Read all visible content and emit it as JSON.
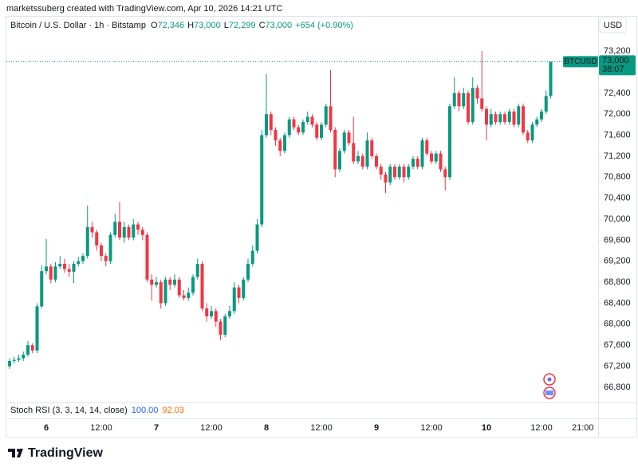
{
  "attribution": "marketssuberg created with TradingView.com, Apr 10, 2026 14:21 UTC",
  "logo": "TradingView",
  "chart_data": {
    "type": "candlestick",
    "title": "Bitcoin / U.S. Dollar · 1h · Bitstamp",
    "ohlc_legend": [
      {
        "key": "O",
        "value": "72,346"
      },
      {
        "key": "H",
        "value": "73,000"
      },
      {
        "key": "L",
        "value": "72,299"
      },
      {
        "key": "C",
        "value": "73,000"
      }
    ],
    "change": "+654 (+0.90%)",
    "currency": "USD",
    "up_color": "#089981",
    "down_color": "#f23645",
    "price_badge": {
      "symbol": "BTCUSD",
      "price": "73,000",
      "countdown": "38:07"
    },
    "indicator": {
      "name": "Stoch RSI (3, 3, 14, 14, close)",
      "k": "100.00",
      "k_color": "#2962ff",
      "d": "92.03",
      "d_color": "#ff6d00"
    },
    "categories": [
      null,
      null,
      null,
      null,
      null,
      null,
      null,
      null,
      "6",
      null,
      null,
      null,
      null,
      null,
      null,
      null,
      null,
      null,
      null,
      null,
      "12:00",
      null,
      null,
      null,
      null,
      null,
      null,
      null,
      null,
      null,
      null,
      null,
      "7",
      null,
      null,
      null,
      null,
      null,
      null,
      null,
      null,
      null,
      null,
      null,
      "12:00",
      null,
      null,
      null,
      null,
      null,
      null,
      null,
      null,
      null,
      null,
      null,
      "8",
      null,
      null,
      null,
      null,
      null,
      null,
      null,
      null,
      null,
      null,
      null,
      "12:00",
      null,
      null,
      null,
      null,
      null,
      null,
      null,
      null,
      null,
      null,
      null,
      "9",
      null,
      null,
      null,
      null,
      null,
      null,
      null,
      null,
      null,
      null,
      null,
      "12:00",
      null,
      null,
      null,
      null,
      null,
      null,
      null,
      null,
      null,
      null,
      null,
      "10",
      null,
      null,
      null,
      null,
      null,
      null,
      null,
      null,
      null,
      null,
      null,
      "12:00",
      null,
      null,
      null,
      null,
      null,
      null,
      null,
      null,
      "21:00"
    ],
    "open": [
      67200,
      67300,
      67320,
      67350,
      67420,
      67600,
      67500,
      68340,
      69010,
      69100,
      68850,
      69100,
      69150,
      69050,
      69000,
      69150,
      69200,
      69300,
      69850,
      69750,
      69500,
      69300,
      69200,
      69700,
      69950,
      69650,
      69850,
      69650,
      69900,
      69800,
      69700,
      68850,
      68750,
      68800,
      68400,
      68850,
      68750,
      68850,
      68550,
      68500,
      68600,
      68900,
      69150,
      68300,
      68150,
      68250,
      68050,
      67800,
      68150,
      68250,
      68700,
      68500,
      68850,
      69150,
      69400,
      69900,
      71600,
      72000,
      71700,
      71500,
      71300,
      71600,
      71900,
      71750,
      71650,
      71850,
      71950,
      71800,
      71550,
      71800,
      72150,
      71700,
      70950,
      71300,
      71650,
      71450,
      71100,
      71200,
      71000,
      71500,
      71200,
      71000,
      70850,
      70700,
      71000,
      70800,
      71000,
      70800,
      71000,
      71150,
      71000,
      71500,
      71250,
      71100,
      71250,
      70950,
      70800,
      72150,
      72400,
      72150,
      72400,
      71850,
      72500,
      72300,
      72100,
      71800,
      72000,
      71850,
      72000,
      71850,
      72050,
      71800,
      72150,
      71650,
      71500,
      71800,
      71900,
      72050,
      72346,
      null,
      null,
      null,
      null,
      null,
      null,
      null
    ],
    "high": [
      67350,
      67380,
      67420,
      67480,
      67680,
      67640,
      68400,
      69120,
      69620,
      69150,
      69180,
      69300,
      69250,
      69150,
      69200,
      69280,
      69350,
      70260,
      69950,
      69800,
      69550,
      69350,
      69750,
      70100,
      70330,
      69950,
      69900,
      70000,
      69950,
      69850,
      69750,
      68950,
      68900,
      68850,
      68900,
      68900,
      68950,
      68900,
      68650,
      68700,
      68950,
      69250,
      69200,
      68400,
      68350,
      68300,
      68100,
      68200,
      68350,
      68800,
      68750,
      68900,
      69250,
      69500,
      70000,
      71700,
      72760,
      72050,
      71750,
      71550,
      71650,
      71950,
      71950,
      71800,
      71900,
      72050,
      72000,
      71850,
      71850,
      72200,
      72840,
      71750,
      71350,
      71700,
      71700,
      71950,
      71300,
      71250,
      71650,
      71550,
      71250,
      71050,
      70900,
      71050,
      71050,
      71050,
      71050,
      71050,
      71200,
      71200,
      71550,
      71550,
      71300,
      71300,
      71300,
      71000,
      72200,
      72700,
      72450,
      72500,
      72450,
      72700,
      72550,
      73200,
      72150,
      72100,
      72050,
      72050,
      72050,
      72100,
      72100,
      72200,
      72200,
      71700,
      71850,
      71950,
      72100,
      72450,
      73000,
      null,
      null,
      null,
      null,
      null,
      null,
      null
    ],
    "low": [
      67150,
      67250,
      67280,
      67300,
      67380,
      67450,
      67450,
      68300,
      68950,
      68780,
      68800,
      69050,
      68980,
      68900,
      68780,
      69100,
      69150,
      69250,
      69650,
      69400,
      69200,
      69100,
      69150,
      69650,
      69600,
      69550,
      69600,
      69600,
      69700,
      69600,
      68800,
      68450,
      68700,
      68300,
      68350,
      68650,
      68700,
      68500,
      68450,
      68450,
      68550,
      68850,
      68250,
      68050,
      68100,
      67950,
      67700,
      67750,
      68100,
      68200,
      68400,
      68450,
      68800,
      69100,
      69350,
      69850,
      71550,
      71600,
      71400,
      71200,
      71250,
      71550,
      71700,
      71600,
      71600,
      71800,
      71750,
      71500,
      71500,
      71750,
      71650,
      70800,
      70900,
      71250,
      71400,
      71050,
      71050,
      70950,
      70950,
      71150,
      70950,
      70750,
      70500,
      70650,
      70750,
      70750,
      70700,
      70750,
      70950,
      70950,
      70950,
      71200,
      71050,
      71050,
      70900,
      70550,
      70750,
      72100,
      72050,
      72100,
      71800,
      71800,
      72200,
      72050,
      71500,
      71750,
      71800,
      71800,
      71800,
      71800,
      71750,
      71750,
      71600,
      71450,
      71450,
      71750,
      71850,
      72000,
      72299,
      null,
      null,
      null,
      null,
      null,
      null,
      null
    ],
    "close": [
      67300,
      67320,
      67350,
      67420,
      67600,
      67500,
      68340,
      69010,
      69100,
      68850,
      69100,
      69150,
      69050,
      69000,
      69150,
      69200,
      69300,
      69850,
      69750,
      69500,
      69300,
      69200,
      69700,
      69950,
      69650,
      69850,
      69650,
      69900,
      69800,
      69700,
      68850,
      68750,
      68800,
      68400,
      68850,
      68750,
      68850,
      68550,
      68500,
      68600,
      68900,
      69150,
      68300,
      68150,
      68250,
      68050,
      67800,
      68150,
      68250,
      68700,
      68500,
      68850,
      69150,
      69400,
      69900,
      71600,
      72000,
      71700,
      71500,
      71300,
      71600,
      71900,
      71750,
      71650,
      71850,
      71950,
      71800,
      71550,
      71800,
      72150,
      71700,
      70950,
      71300,
      71650,
      71450,
      71100,
      71200,
      71000,
      71500,
      71200,
      71000,
      70850,
      70700,
      71000,
      70800,
      71000,
      70800,
      71000,
      71150,
      71000,
      71500,
      71250,
      71100,
      71250,
      70950,
      70800,
      72150,
      72400,
      72150,
      72400,
      71850,
      72500,
      72300,
      72100,
      71800,
      72000,
      71850,
      72000,
      71850,
      72050,
      71800,
      72150,
      71650,
      71500,
      71800,
      71900,
      72050,
      72346,
      73000,
      null,
      null,
      null,
      null,
      null,
      null,
      null
    ],
    "ylim": [
      66510,
      73870
    ],
    "yticks": [
      {
        "value": 66800,
        "label": "66,800"
      },
      {
        "value": 67200,
        "label": "67,200"
      },
      {
        "value": 67600,
        "label": "67,600"
      },
      {
        "value": 68000,
        "label": "68,000"
      },
      {
        "value": 68400,
        "label": "68,400"
      },
      {
        "value": 68800,
        "label": "68,800"
      },
      {
        "value": 69200,
        "label": "69,200"
      },
      {
        "value": 69600,
        "label": "69,600"
      },
      {
        "value": 70000,
        "label": "70,000"
      },
      {
        "value": 70400,
        "label": "70,400"
      },
      {
        "value": 70800,
        "label": "70,800"
      },
      {
        "value": 71200,
        "label": "71,200"
      },
      {
        "value": 71600,
        "label": "71,600"
      },
      {
        "value": 72000,
        "label": "72,000"
      },
      {
        "value": 72400,
        "label": "72,400"
      },
      {
        "value": 73200,
        "label": "73,200"
      }
    ],
    "grid": false
  }
}
